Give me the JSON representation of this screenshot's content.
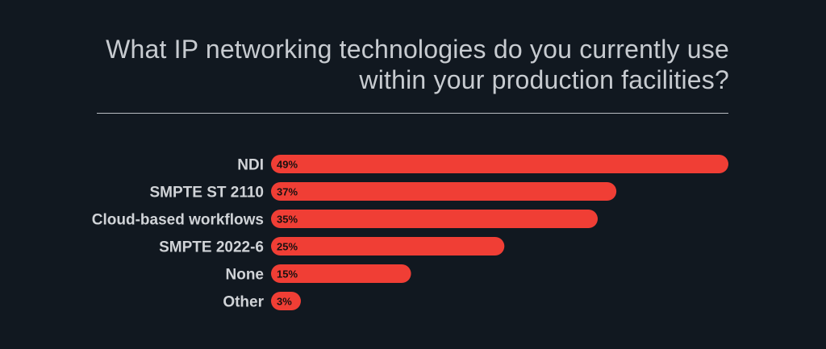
{
  "chart_data": {
    "type": "bar",
    "orientation": "horizontal",
    "title": "What IP networking technologies do you currently use within your production facilities?",
    "categories": [
      "NDI",
      "SMPTE ST 2110",
      "Cloud-based workflows",
      "SMPTE 2022-6",
      "None",
      "Other"
    ],
    "values": [
      49,
      37,
      35,
      25,
      15,
      3
    ],
    "value_labels": [
      "49%",
      "37%",
      "35%",
      "25%",
      "15%",
      "3%"
    ],
    "xlim": [
      0,
      49
    ],
    "grid": false,
    "legend": "none",
    "bar_color": "#f03e35",
    "background_color": "#111820",
    "text_color": "#d0d3d7"
  }
}
